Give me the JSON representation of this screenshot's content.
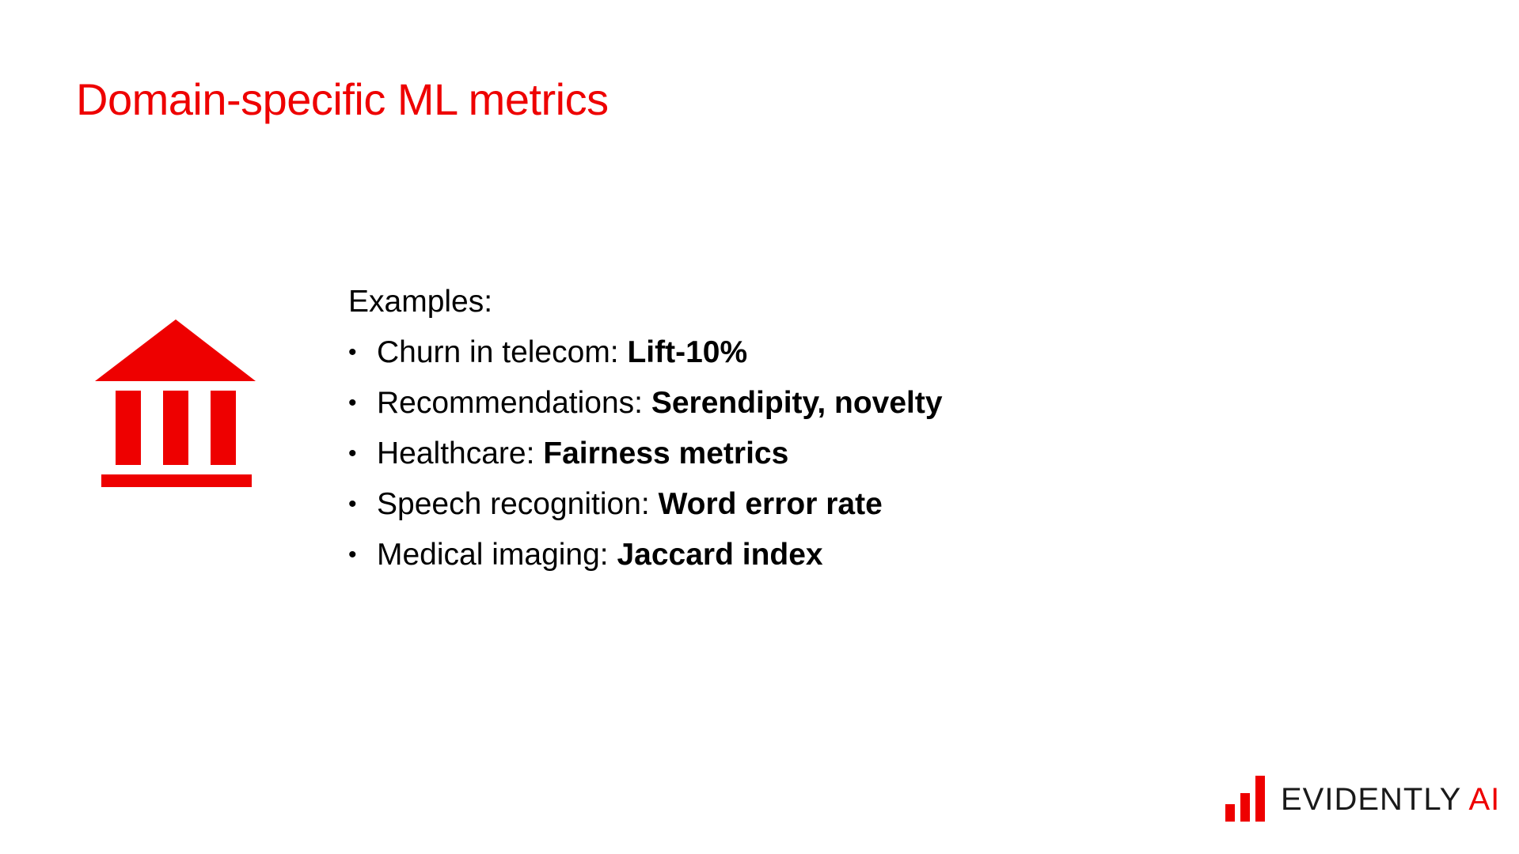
{
  "slide": {
    "title": "Domain-specific ML metrics",
    "intro": "Examples:",
    "icon": "institution-icon",
    "examples": [
      {
        "domain": "Churn in telecom: ",
        "metric": "Lift-10%"
      },
      {
        "domain": "Recommendations: ",
        "metric": "Serendipity, novelty"
      },
      {
        "domain": "Healthcare: ",
        "metric": "Fairness metrics"
      },
      {
        "domain": "Speech recognition: ",
        "metric": "Word error rate"
      },
      {
        "domain": "Medical imaging: ",
        "metric": "Jaccard index"
      }
    ],
    "bullet": "•"
  },
  "logo": {
    "icon": "bar-chart-logo-icon",
    "word": "EVIDENTLY",
    "suffix": "AI"
  },
  "colors": {
    "accent": "#ee0000",
    "text": "#000000",
    "background": "#ffffff"
  }
}
